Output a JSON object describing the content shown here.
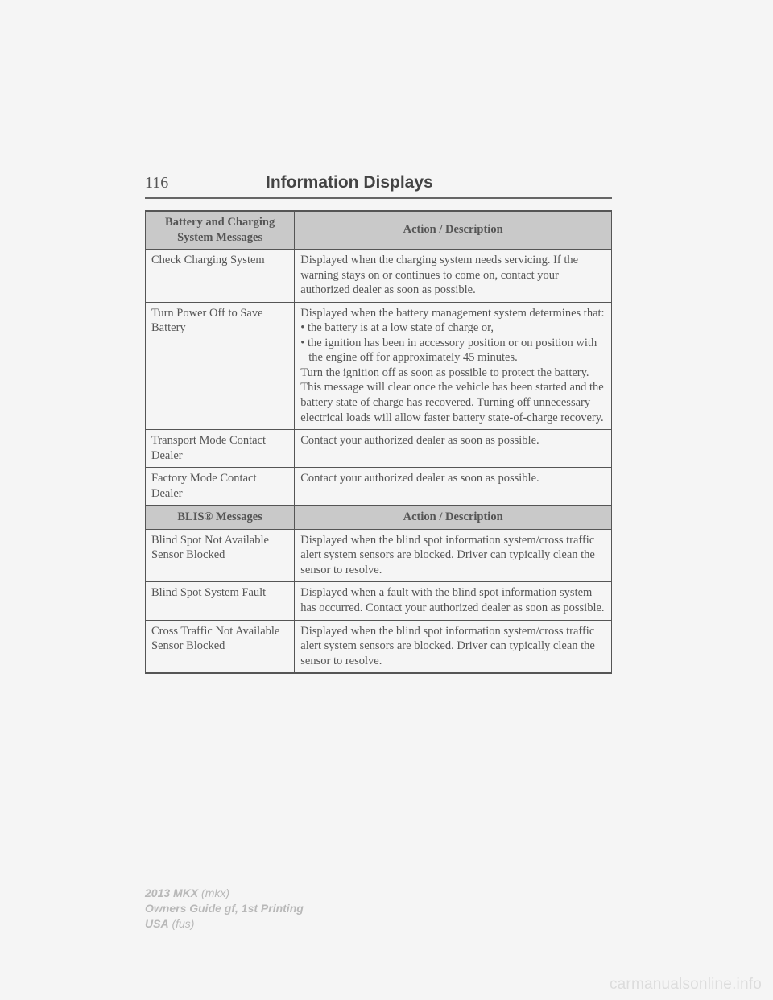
{
  "header": {
    "page_number": "116",
    "title": "Information Displays"
  },
  "table1": {
    "headers": [
      "Battery and Charging System Messages",
      "Action / Description"
    ],
    "rows": [
      {
        "msg": "Check Charging System",
        "desc": "Displayed when the charging system needs servicing. If the warning stays on or continues to come on, contact your authorized dealer as soon as possible."
      },
      {
        "msg": "Turn Power Off to Save Battery",
        "desc_intro": "Displayed when the battery management system determines that:",
        "bullet1": "• the battery is at a low state of charge or,",
        "bullet2": "• the ignition has been in accessory position or on position with the engine off for approximately 45 minutes.",
        "desc_outro": "Turn the ignition off as soon as possible to protect the battery. This message will clear once the vehicle has been started and the battery state of charge has recovered. Turning off unnecessary electrical loads will allow faster battery state-of-charge recovery."
      },
      {
        "msg": "Transport Mode Contact Dealer",
        "desc": "Contact your authorized dealer as soon as possible."
      },
      {
        "msg": "Factory Mode Contact Dealer",
        "desc": "Contact your authorized dealer as soon as possible."
      }
    ]
  },
  "table2": {
    "headers": [
      "BLIS® Messages",
      "Action / Description"
    ],
    "rows": [
      {
        "msg": "Blind Spot Not Available Sensor Blocked",
        "desc": "Displayed when the blind spot information system/cross traffic alert system sensors are blocked. Driver can typically clean the sensor to resolve."
      },
      {
        "msg": "Blind Spot System Fault",
        "desc": "Displayed when a fault with the blind spot information system has occurred. Contact your authorized dealer as soon as possible."
      },
      {
        "msg": "Cross Traffic Not Available Sensor Blocked",
        "desc": "Displayed when the blind spot information system/cross traffic alert system sensors are blocked. Driver can typically clean the sensor to resolve."
      }
    ]
  },
  "footer": {
    "line1_bold": "2013 MKX",
    "line1_rest": " (mkx)",
    "line2": "Owners Guide gf, 1st Printing",
    "line3_bold": "USA",
    "line3_rest": " (fus)"
  },
  "watermark": "carmanualsonline.info"
}
